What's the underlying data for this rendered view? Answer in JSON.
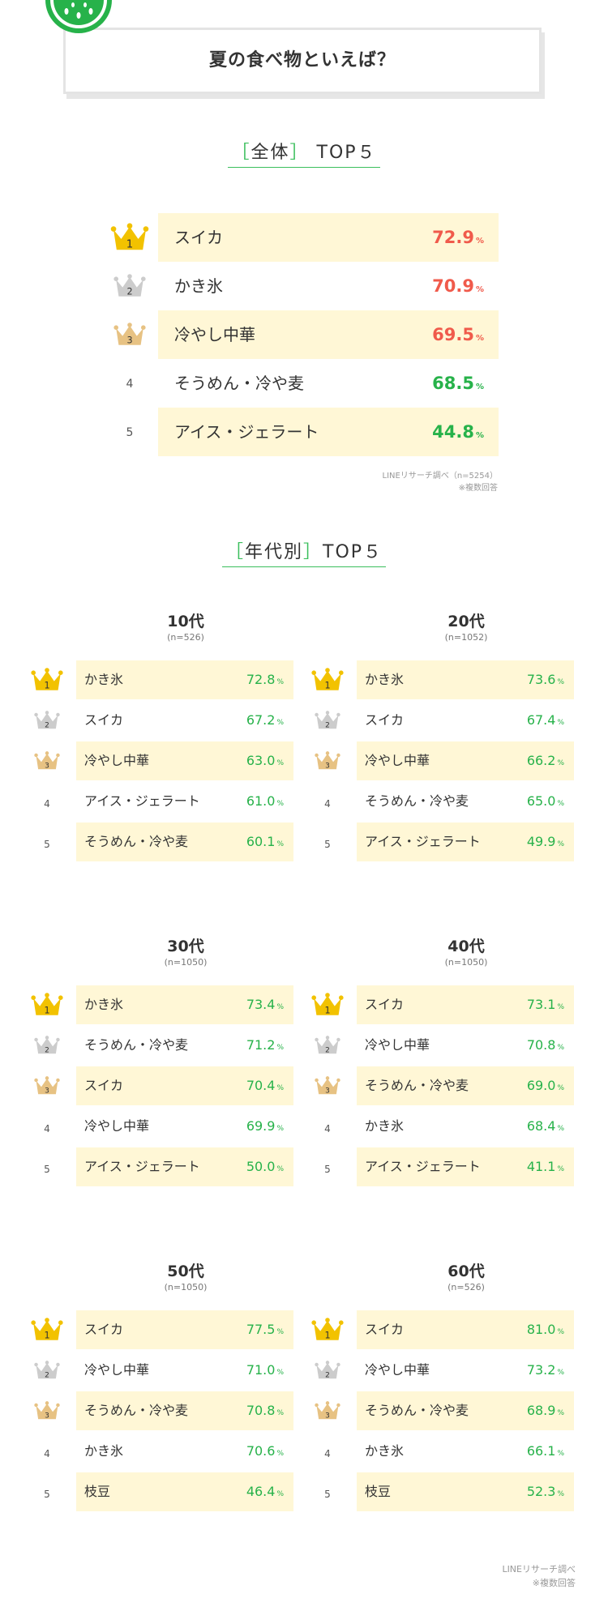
{
  "title": "夏の食べ物といえば？",
  "overall": {
    "heading_open": "［",
    "heading_label": "全体",
    "heading_close": "］",
    "heading_suffix": "TOP５",
    "items": [
      {
        "rank": "1",
        "name": "スイカ",
        "pct": "72.9",
        "unit": "%",
        "color": "#f05a4b"
      },
      {
        "rank": "2",
        "name": "かき氷",
        "pct": "70.9",
        "unit": "%",
        "color": "#f05a4b"
      },
      {
        "rank": "3",
        "name": "冷やし中華",
        "pct": "69.5",
        "unit": "%",
        "color": "#f05a4b"
      },
      {
        "rank": "4",
        "name": "そうめん・冷や麦",
        "pct": "68.5",
        "unit": "%",
        "color": "#27b24a"
      },
      {
        "rank": "5",
        "name": "アイス・ジェラート",
        "pct": "44.8",
        "unit": "%",
        "color": "#27b24a"
      }
    ],
    "credit_line1": "LINEリサーチ調べ（n=5254）",
    "credit_line2": "※複数回答"
  },
  "by_age": {
    "heading_open": "［",
    "heading_label": "年代別",
    "heading_close": "］",
    "heading_suffix": "TOP５",
    "groups": [
      {
        "label": "10代",
        "n": "(n=526)",
        "items": [
          {
            "rank": "1",
            "name": "かき氷",
            "pct": "72.8",
            "unit": "%"
          },
          {
            "rank": "2",
            "name": "スイカ",
            "pct": "67.2",
            "unit": "%"
          },
          {
            "rank": "3",
            "name": "冷やし中華",
            "pct": "63.0",
            "unit": "%"
          },
          {
            "rank": "4",
            "name": "アイス・ジェラート",
            "pct": "61.0",
            "unit": "%"
          },
          {
            "rank": "5",
            "name": "そうめん・冷や麦",
            "pct": "60.1",
            "unit": "%"
          }
        ]
      },
      {
        "label": "20代",
        "n": "(n=1052)",
        "items": [
          {
            "rank": "1",
            "name": "かき氷",
            "pct": "73.6",
            "unit": "%"
          },
          {
            "rank": "2",
            "name": "スイカ",
            "pct": "67.4",
            "unit": "%"
          },
          {
            "rank": "3",
            "name": "冷やし中華",
            "pct": "66.2",
            "unit": "%"
          },
          {
            "rank": "4",
            "name": "そうめん・冷や麦",
            "pct": "65.0",
            "unit": "%"
          },
          {
            "rank": "5",
            "name": "アイス・ジェラート",
            "pct": "49.9",
            "unit": "%"
          }
        ]
      },
      {
        "label": "30代",
        "n": "(n=1050)",
        "items": [
          {
            "rank": "1",
            "name": "かき氷",
            "pct": "73.4",
            "unit": "%"
          },
          {
            "rank": "2",
            "name": "そうめん・冷や麦",
            "pct": "71.2",
            "unit": "%"
          },
          {
            "rank": "3",
            "name": "スイカ",
            "pct": "70.4",
            "unit": "%"
          },
          {
            "rank": "4",
            "name": "冷やし中華",
            "pct": "69.9",
            "unit": "%"
          },
          {
            "rank": "5",
            "name": "アイス・ジェラート",
            "pct": "50.0",
            "unit": "%"
          }
        ]
      },
      {
        "label": "40代",
        "n": "(n=1050)",
        "items": [
          {
            "rank": "1",
            "name": "スイカ",
            "pct": "73.1",
            "unit": "%"
          },
          {
            "rank": "2",
            "name": "冷やし中華",
            "pct": "70.8",
            "unit": "%"
          },
          {
            "rank": "3",
            "name": "そうめん・冷や麦",
            "pct": "69.0",
            "unit": "%"
          },
          {
            "rank": "4",
            "name": "かき氷",
            "pct": "68.4",
            "unit": "%"
          },
          {
            "rank": "5",
            "name": "アイス・ジェラート",
            "pct": "41.1",
            "unit": "%"
          }
        ]
      },
      {
        "label": "50代",
        "n": "(n=1050)",
        "items": [
          {
            "rank": "1",
            "name": "スイカ",
            "pct": "77.5",
            "unit": "%"
          },
          {
            "rank": "2",
            "name": "冷やし中華",
            "pct": "71.0",
            "unit": "%"
          },
          {
            "rank": "3",
            "name": "そうめん・冷や麦",
            "pct": "70.8",
            "unit": "%"
          },
          {
            "rank": "4",
            "name": "かき氷",
            "pct": "70.6",
            "unit": "%"
          },
          {
            "rank": "5",
            "name": "枝豆",
            "pct": "46.4",
            "unit": "%"
          }
        ]
      },
      {
        "label": "60代",
        "n": "(n=526)",
        "items": [
          {
            "rank": "1",
            "name": "スイカ",
            "pct": "81.0",
            "unit": "%"
          },
          {
            "rank": "2",
            "name": "冷やし中華",
            "pct": "73.2",
            "unit": "%"
          },
          {
            "rank": "3",
            "name": "そうめん・冷や麦",
            "pct": "68.9",
            "unit": "%"
          },
          {
            "rank": "4",
            "name": "かき氷",
            "pct": "66.1",
            "unit": "%"
          },
          {
            "rank": "5",
            "name": "枝豆",
            "pct": "52.3",
            "unit": "%"
          }
        ]
      }
    ],
    "credit_line1": "LINEリサーチ調べ",
    "credit_line2": "※複数回答"
  },
  "colors": {
    "accent_green": "#3bbf5c",
    "highlight_row": "#fff7d6",
    "gold_crown": "#f2c200",
    "silver_crown": "#cccccc",
    "bronze_crown": "#e7c283"
  },
  "icons": [
    "watermelon-icon",
    "gold-crown-icon",
    "silver-crown-icon",
    "bronze-crown-icon"
  ]
}
